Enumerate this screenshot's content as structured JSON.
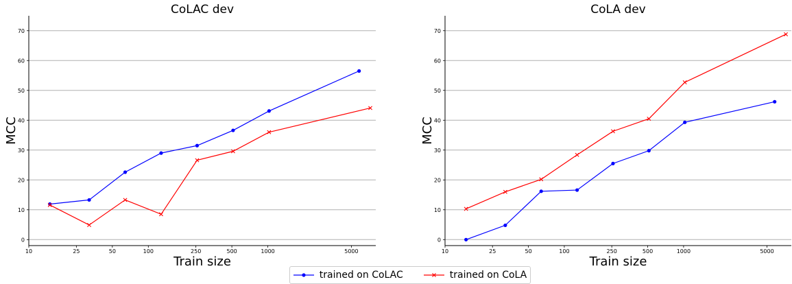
{
  "chart_data": [
    {
      "type": "line",
      "title": "CoLAC dev",
      "xlabel": "Train size",
      "ylabel": "MCC",
      "xscale": "log",
      "xlim": [
        10,
        8000
      ],
      "ylim": [
        -2,
        75
      ],
      "xticks": [
        "10",
        "25",
        "50",
        "100",
        "250",
        "500",
        "1000",
        "5000"
      ],
      "yticks": [
        "0",
        "10",
        "20",
        "30",
        "40",
        "50",
        "60",
        "70"
      ],
      "grid": "horizontal",
      "series": [
        {
          "name": "trained on CoLAC",
          "color": "#0000ff",
          "marker": "circle",
          "x": [
            15,
            32,
            64,
            128,
            256,
            512,
            1024,
            5800
          ],
          "y": [
            11.9,
            13.3,
            22.6,
            29.0,
            31.5,
            36.6,
            43.1,
            56.5
          ]
        },
        {
          "name": "trained on CoLA",
          "color": "#ff0000",
          "marker": "x",
          "x": [
            15,
            32,
            64,
            128,
            256,
            512,
            1024,
            7200
          ],
          "y": [
            11.6,
            4.9,
            13.3,
            8.5,
            26.6,
            29.6,
            36.0,
            44.1
          ]
        }
      ]
    },
    {
      "type": "line",
      "title": "CoLA dev",
      "xlabel": "Train size",
      "ylabel": "MCC",
      "xscale": "log",
      "xlim": [
        10,
        8000
      ],
      "ylim": [
        -2,
        75
      ],
      "xticks": [
        "10",
        "25",
        "50",
        "100",
        "250",
        "500",
        "1000",
        "5000"
      ],
      "yticks": [
        "0",
        "10",
        "20",
        "30",
        "40",
        "50",
        "60",
        "70"
      ],
      "grid": "horizontal",
      "series": [
        {
          "name": "trained on CoLAC",
          "color": "#0000ff",
          "marker": "circle",
          "x": [
            15,
            32,
            64,
            128,
            256,
            512,
            1024,
            5800
          ],
          "y": [
            0.0,
            4.8,
            16.2,
            16.6,
            25.5,
            29.8,
            39.3,
            46.2
          ]
        },
        {
          "name": "trained on CoLA",
          "color": "#ff0000",
          "marker": "x",
          "x": [
            15,
            32,
            64,
            128,
            256,
            512,
            1024,
            7200
          ],
          "y": [
            10.3,
            16.0,
            20.2,
            28.4,
            36.3,
            40.5,
            52.7,
            68.8
          ]
        }
      ]
    }
  ],
  "legend": [
    {
      "label": "trained on CoLAC",
      "color": "#0000ff",
      "marker": "circle"
    },
    {
      "label": "trained on CoLA",
      "color": "#ff0000",
      "marker": "x"
    }
  ]
}
